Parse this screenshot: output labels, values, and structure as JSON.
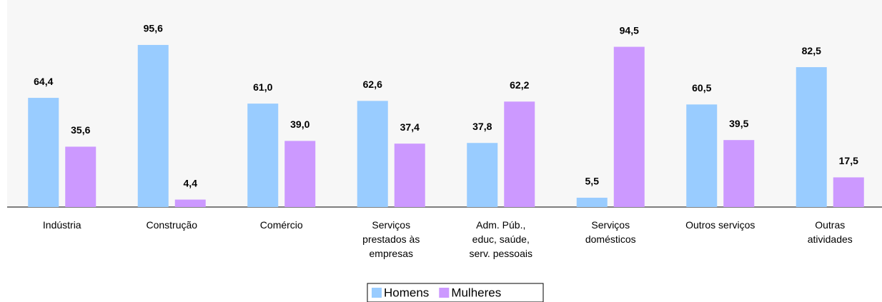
{
  "chart_data": {
    "type": "bar",
    "categories": [
      "Indústria",
      "Construção",
      "Comércio",
      "Serviços\nprestados às\nempresas",
      "Adm. Púb.,\neduc, saúde,\nserv. pessoais",
      "Serviços\ndomésticos",
      "Outros serviços",
      "Outras\natividades"
    ],
    "series": [
      {
        "name": "Homens",
        "color": "#99ccff",
        "values": [
          64.4,
          95.6,
          61.0,
          62.6,
          37.8,
          5.5,
          60.5,
          82.5
        ],
        "value_labels": [
          "64,4",
          "95,6",
          "61,0",
          "62,6",
          "37,8",
          "5,5",
          "60,5",
          "82,5"
        ]
      },
      {
        "name": "Mulheres",
        "color": "#cc99ff",
        "values": [
          35.6,
          4.4,
          39.0,
          37.4,
          62.2,
          94.5,
          39.5,
          17.5
        ],
        "value_labels": [
          "35,6",
          "4,4",
          "39,0",
          "37,4",
          "62,2",
          "94,5",
          "39,5",
          "17,5"
        ]
      }
    ],
    "ylim": [
      0,
      100
    ],
    "legend": "bottom"
  }
}
